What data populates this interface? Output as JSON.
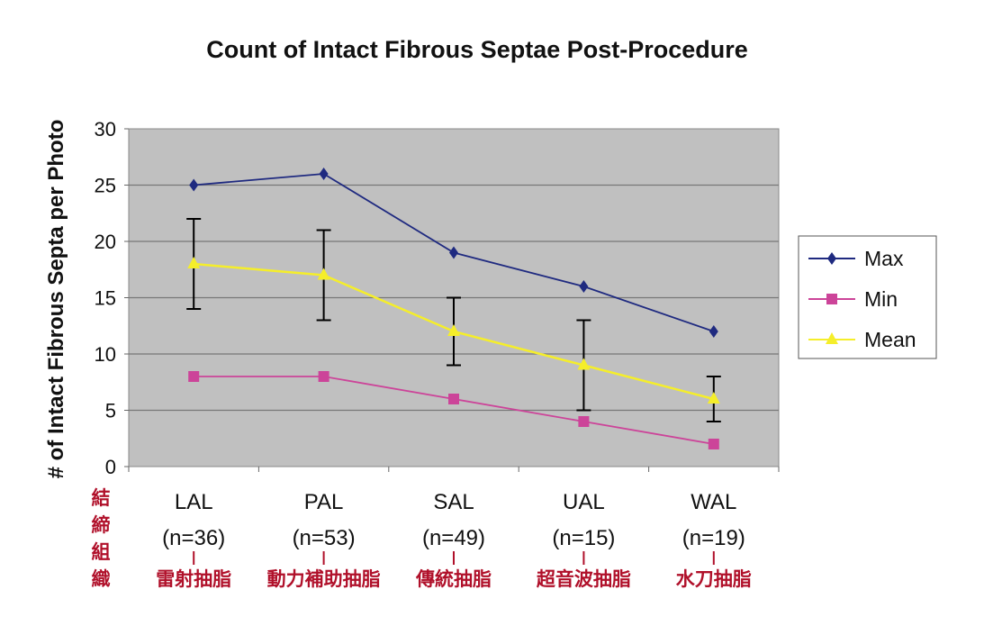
{
  "chart_data": {
    "type": "line",
    "title": "Count of Intact Fibrous Septae Post-Procedure",
    "xlabel": "",
    "ylabel": "# of Intact Fibrous Septa per Photo",
    "ylim": [
      0,
      30
    ],
    "yticks": [
      0,
      5,
      10,
      15,
      20,
      25,
      30
    ],
    "grid": true,
    "legend_position": "right",
    "categories": [
      "LAL",
      "PAL",
      "SAL",
      "UAL",
      "WAL"
    ],
    "category_n": [
      "(n=36)",
      "(n=53)",
      "(n=49)",
      "(n=15)",
      "(n=19)"
    ],
    "category_annotations": [
      "雷射抽脂",
      "動力補助抽脂",
      "傳統抽脂",
      "超音波抽脂",
      "水刀抽脂"
    ],
    "side_annotation": [
      "結",
      "締",
      "組",
      "織"
    ],
    "series": [
      {
        "name": "Max",
        "values": [
          25,
          26,
          19,
          16,
          12
        ],
        "color": "#1f2a80",
        "marker": "diamond"
      },
      {
        "name": "Min",
        "values": [
          8,
          8,
          6,
          4,
          2
        ],
        "color": "#cc4499",
        "marker": "square"
      },
      {
        "name": "Mean",
        "values": [
          18,
          17,
          12,
          9,
          6
        ],
        "color": "#f5ee2a",
        "marker": "triangle",
        "error_low": [
          14,
          13,
          9,
          5,
          4
        ],
        "error_high": [
          22,
          21,
          15,
          13,
          8
        ]
      }
    ],
    "colors": {
      "plot_bg": "#c0c0c0",
      "annotation": "#b0102a"
    }
  }
}
